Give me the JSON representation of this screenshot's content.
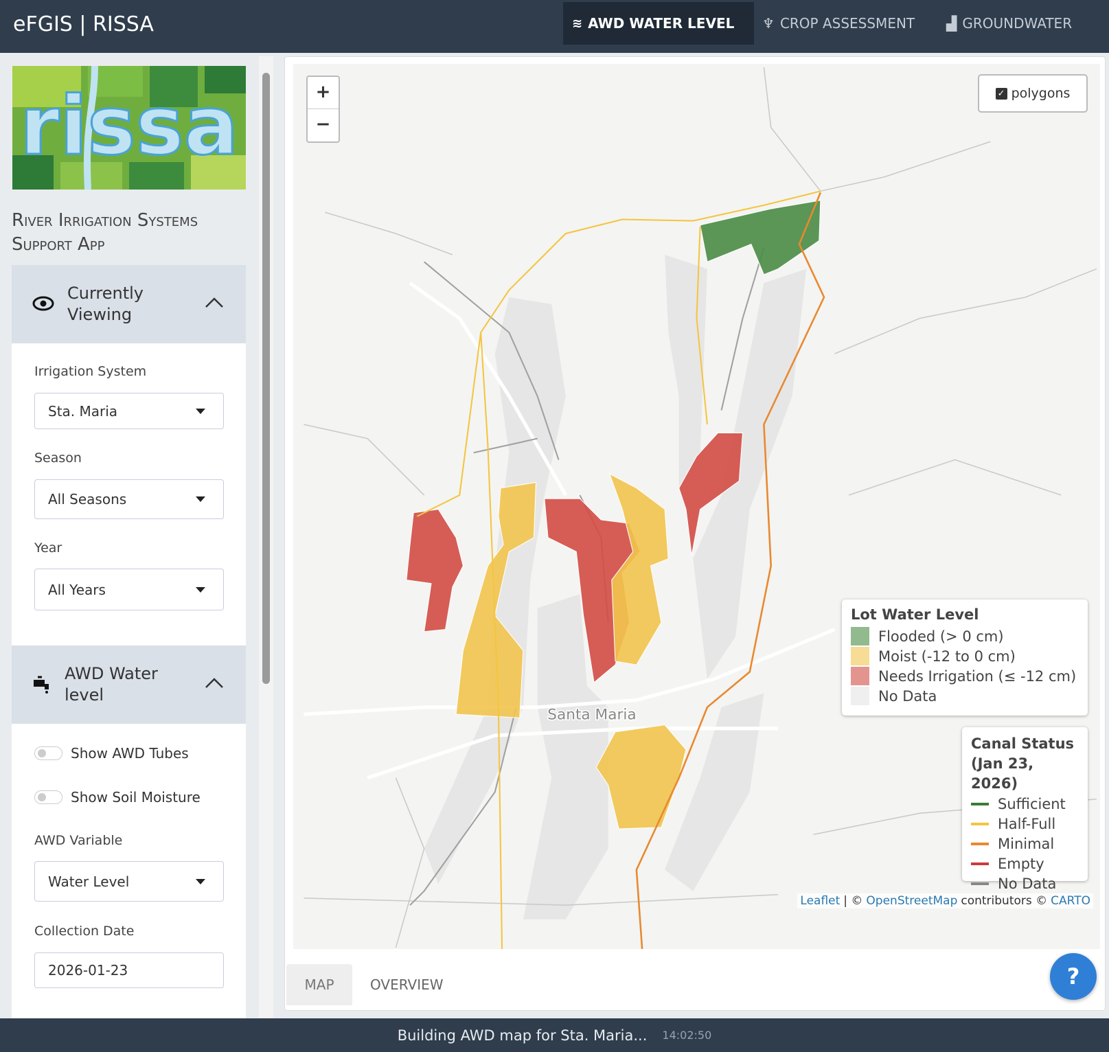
{
  "header": {
    "title": "eFGIS | RISSA",
    "nav": [
      "AWD WATER LEVEL",
      "CROP ASSESSMENT",
      "GROUNDWATER"
    ]
  },
  "sidebar": {
    "logo": "rissa",
    "subtitle": [
      "River Irrigation Systems",
      "Support App"
    ],
    "sections": [
      {
        "title": "Currently Viewing",
        "fields": [
          {
            "label": "Irrigation System",
            "value": "Sta. Maria"
          },
          {
            "label": "Season",
            "value": "All Seasons"
          },
          {
            "label": "Year",
            "value": "All Years"
          }
        ]
      },
      {
        "title": "AWD Water level",
        "toggles": [
          "Show AWD Tubes",
          "Show Soil Moisture"
        ],
        "fields": [
          {
            "label": "AWD Variable",
            "value": "Water Level"
          },
          {
            "label": "Collection Date",
            "value": "2026-01-23"
          }
        ]
      }
    ]
  },
  "map": {
    "zoom_in": "+",
    "zoom_out": "−",
    "layer_toggle": "polygons",
    "place_label": "Santa Maria",
    "legend_lots": {
      "title": "Lot Water Level",
      "items": [
        {
          "label": "Flooded (> 0 cm)",
          "color": "#4a8c45"
        },
        {
          "label": "Moist (-12 to 0 cm)",
          "color": "#f2c44e"
        },
        {
          "label": "Needs Irrigation (≤ -12 cm)",
          "color": "#d24d45"
        },
        {
          "label": "No Data",
          "color": "#e4e4e4"
        }
      ]
    },
    "legend_canals": {
      "title": [
        "Canal Status",
        "(Jan 23, 2026)"
      ],
      "items": [
        {
          "label": "Sufficient",
          "color": "#3a7d34"
        },
        {
          "label": "Half-Full",
          "color": "#f4c542"
        },
        {
          "label": "Minimal",
          "color": "#e8892f"
        },
        {
          "label": "Empty",
          "color": "#d0393b"
        },
        {
          "label": "No Data",
          "color": "#888888"
        }
      ]
    },
    "attribution": [
      "Leaflet",
      "| ©",
      "OpenStreetMap",
      "contributors ©",
      "CARTO"
    ]
  },
  "tabs": [
    "MAP",
    "OVERVIEW"
  ],
  "help": "?",
  "status": {
    "message": "Building AWD map for Sta. Maria...",
    "time": "14:02:50"
  }
}
